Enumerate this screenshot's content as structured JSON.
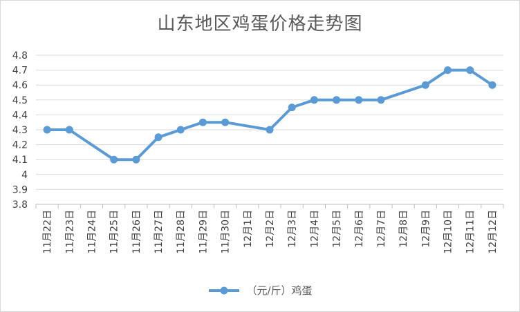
{
  "chart_data": {
    "type": "line",
    "title": "山东地区鸡蛋价格走势图",
    "categories": [
      "11月22日",
      "11月23日",
      "11月24日",
      "11月25日",
      "11月26日",
      "11月27日",
      "11月28日",
      "11月29日",
      "11月30日",
      "12月1日",
      "12月2日",
      "12月3日",
      "12月4日",
      "12月5日",
      "12月6日",
      "12月7日",
      "12月8日",
      "12月9日",
      "12月10日",
      "12月11日",
      "12月12日"
    ],
    "series": [
      {
        "name": "（元/斤）鸡蛋",
        "values": [
          4.3,
          4.3,
          null,
          4.1,
          4.1,
          4.25,
          4.3,
          4.35,
          4.35,
          null,
          4.3,
          4.45,
          4.5,
          4.5,
          4.5,
          4.5,
          null,
          4.6,
          4.7,
          4.7,
          4.6
        ],
        "color": "#5b9bd5"
      }
    ],
    "ylim": [
      3.8,
      4.8
    ],
    "yticks": [
      "4.8",
      "4.7",
      "4.6",
      "4.5",
      "4.4",
      "4.3",
      "4.2",
      "4.1",
      "4",
      "3.9",
      "3.8"
    ],
    "grid": true,
    "legend_position": "bottom",
    "xlabel": "",
    "ylabel": ""
  }
}
